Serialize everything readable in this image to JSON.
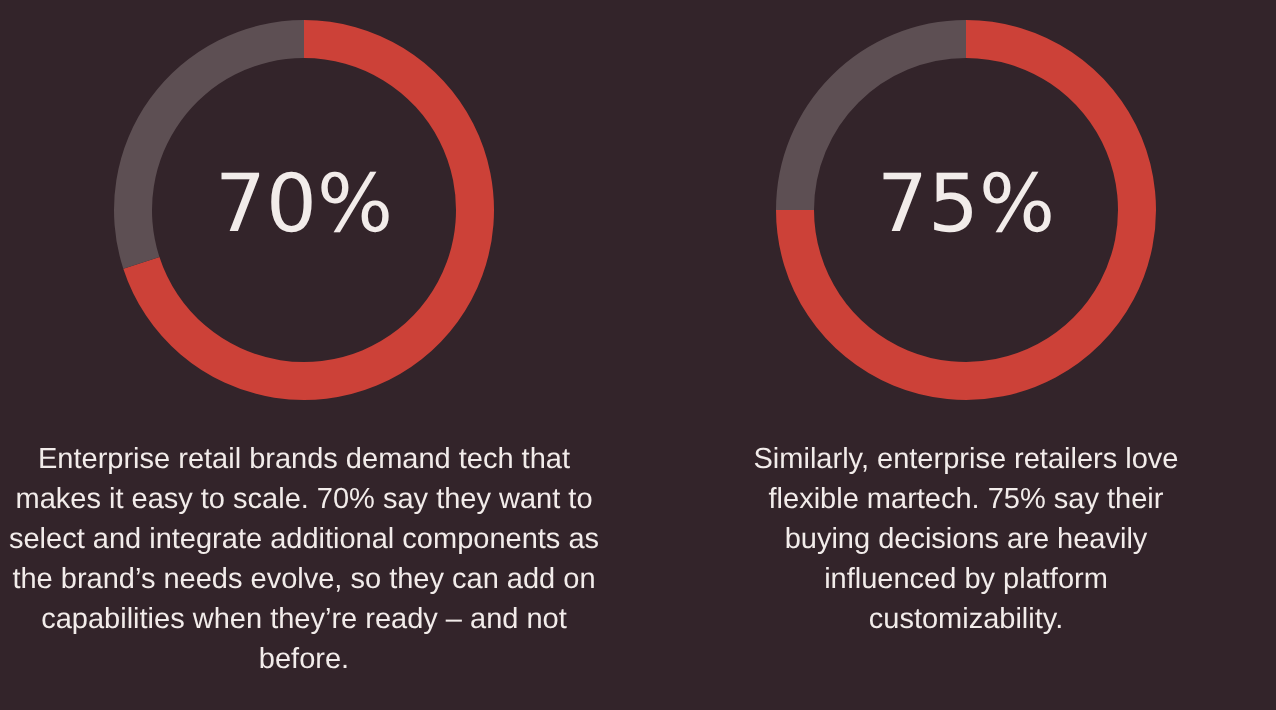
{
  "chart_data": [
    {
      "type": "donut",
      "categories": [
        null,
        null
      ],
      "values": [
        70,
        30
      ],
      "colors": [
        "#cc4138",
        "#5d4f53"
      ],
      "value_labels": [
        "70%",
        null
      ],
      "annotations": [
        "Enterprise retail brands demand tech that makes it easy to scale. 70% say they want to select and integrate additional components as the brand’s needs evolve, so they can add on capabilities when they’re ready – and not before."
      ]
    },
    {
      "type": "donut",
      "categories": [
        null,
        null
      ],
      "values": [
        75,
        25
      ],
      "colors": [
        "#cc4138",
        "#5d4f53"
      ],
      "value_labels": [
        "75%",
        null
      ],
      "annotations": [
        "Similarly, enterprise retailers love flexible martech. 75% say their buying decisions are heavily influenced by platform customizability."
      ]
    }
  ]
}
